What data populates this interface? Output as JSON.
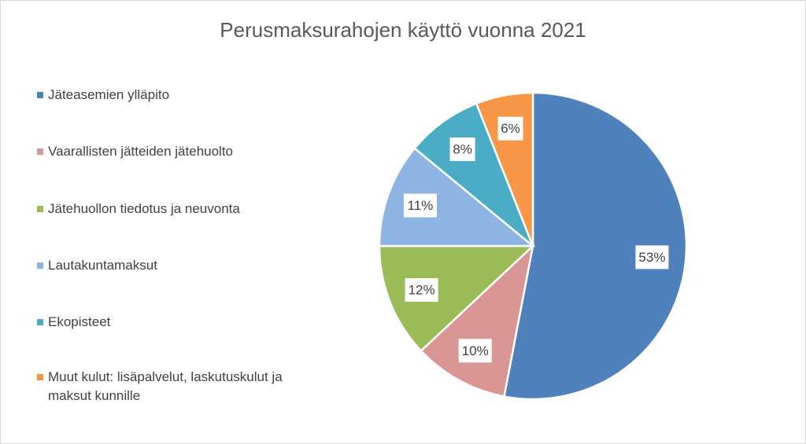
{
  "chart_data": {
    "type": "pie",
    "title": "Perusmaksurahojen käyttö vuonna 2021",
    "categories": [
      "Jäteasemien ylläpito",
      "Vaarallisten jätteiden jätehuolto",
      "Jätehuollon tiedotus ja neuvonta",
      "Lautakuntamaksut",
      "Ekopisteet",
      "Muut kulut: lisäpalvelut, laskutuskulut ja maksut kunnille"
    ],
    "values": [
      53,
      10,
      12,
      11,
      8,
      6
    ],
    "value_labels": [
      "53%",
      "10%",
      "12%",
      "11%",
      "8%",
      "6%"
    ],
    "colors": [
      "#4f81bd",
      "#d99694",
      "#9bbb59",
      "#8eb4e3",
      "#4bacc6",
      "#f79646"
    ],
    "legend": "left"
  }
}
